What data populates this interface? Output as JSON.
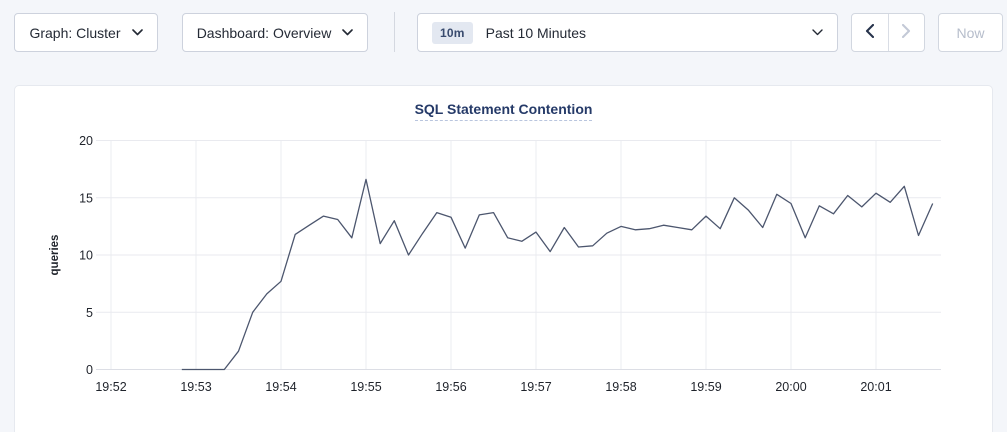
{
  "colors": {
    "page_background": "#f4f6fa",
    "card_background": "#ffffff",
    "line_color": "#4c566e",
    "title_color": "#253a68",
    "grid_color": "#e9eaef",
    "disabled_color": "#b6bdcb"
  },
  "toolbar": {
    "graph_dropdown": {
      "label": "Graph: Cluster",
      "icon": "chevron-down-icon"
    },
    "dashboard_dropdown": {
      "label": "Dashboard: Overview",
      "icon": "chevron-down-icon"
    },
    "time_picker": {
      "badge": "10m",
      "label": "Past 10 Minutes",
      "icon": "chevron-down-icon"
    },
    "nav": {
      "prev_icon": "chevron-left-icon",
      "next_icon": "chevron-right-icon"
    },
    "now_button": {
      "label": "Now"
    }
  },
  "chart_data": {
    "type": "line",
    "title": "SQL Statement Contention",
    "xlabel": "",
    "ylabel": "queries",
    "ylim": [
      0,
      20
    ],
    "yticks": [
      0,
      5,
      10,
      15,
      20
    ],
    "xticks": [
      "19:52",
      "19:53",
      "19:54",
      "19:55",
      "19:56",
      "19:57",
      "19:58",
      "19:59",
      "20:00",
      "20:01"
    ],
    "grid": true,
    "legend_position": "none",
    "series": [
      {
        "name": "SQL Statement Contention",
        "points": [
          [
            "19:52:50",
            0
          ],
          [
            "19:53:00",
            0
          ],
          [
            "19:53:10",
            0
          ],
          [
            "19:53:20",
            0
          ],
          [
            "19:53:30",
            1.6
          ],
          [
            "19:53:40",
            5.0
          ],
          [
            "19:53:50",
            6.6
          ],
          [
            "19:54:00",
            7.7
          ],
          [
            "19:54:10",
            11.8
          ],
          [
            "19:54:20",
            12.6
          ],
          [
            "19:54:30",
            13.4
          ],
          [
            "19:54:40",
            13.1
          ],
          [
            "19:54:50",
            11.5
          ],
          [
            "19:55:00",
            16.6
          ],
          [
            "19:55:10",
            11.0
          ],
          [
            "19:55:20",
            13.0
          ],
          [
            "19:55:30",
            10.0
          ],
          [
            "19:55:40",
            11.9
          ],
          [
            "19:55:50",
            13.7
          ],
          [
            "19:56:00",
            13.3
          ],
          [
            "19:56:10",
            10.6
          ],
          [
            "19:56:20",
            13.5
          ],
          [
            "19:56:30",
            13.7
          ],
          [
            "19:56:40",
            11.5
          ],
          [
            "19:56:50",
            11.2
          ],
          [
            "19:57:00",
            12.0
          ],
          [
            "19:57:10",
            10.3
          ],
          [
            "19:57:20",
            12.4
          ],
          [
            "19:57:30",
            10.7
          ],
          [
            "19:57:40",
            10.8
          ],
          [
            "19:57:50",
            11.9
          ],
          [
            "19:58:00",
            12.5
          ],
          [
            "19:58:10",
            12.2
          ],
          [
            "19:58:20",
            12.3
          ],
          [
            "19:58:30",
            12.6
          ],
          [
            "19:58:40",
            12.4
          ],
          [
            "19:58:50",
            12.2
          ],
          [
            "19:59:00",
            13.4
          ],
          [
            "19:59:10",
            12.3
          ],
          [
            "19:59:20",
            15.0
          ],
          [
            "19:59:30",
            13.9
          ],
          [
            "19:59:40",
            12.4
          ],
          [
            "19:59:50",
            15.3
          ],
          [
            "20:00:00",
            14.5
          ],
          [
            "20:00:10",
            11.5
          ],
          [
            "20:00:20",
            14.3
          ],
          [
            "20:00:30",
            13.6
          ],
          [
            "20:00:40",
            15.2
          ],
          [
            "20:00:50",
            14.2
          ],
          [
            "20:01:00",
            15.4
          ],
          [
            "20:01:10",
            14.6
          ],
          [
            "20:01:20",
            16.0
          ],
          [
            "20:01:30",
            11.7
          ],
          [
            "20:01:40",
            14.5
          ]
        ]
      }
    ]
  }
}
